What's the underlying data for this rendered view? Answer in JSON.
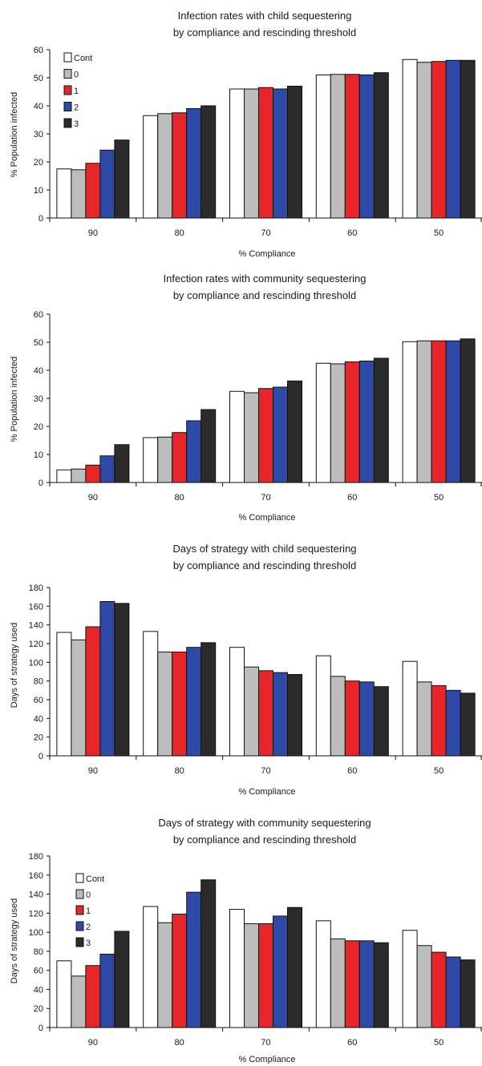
{
  "colors": {
    "Cont": "#ffffff",
    "0": "#bdbdbd",
    "1": "#e8262a",
    "2": "#2f4aa6",
    "3": "#2b2b2b",
    "stroke": "#111111"
  },
  "chart_data": [
    {
      "type": "bar",
      "title": "Infection rates with child sequestering",
      "subtitle": "by compliance and rescinding threshold",
      "xlabel": "% Compliance",
      "ylabel": "% Population infected",
      "ylim": [
        0,
        60
      ],
      "yticks": [
        0,
        10,
        20,
        30,
        40,
        50,
        60
      ],
      "categories": [
        "90",
        "80",
        "70",
        "60",
        "50"
      ],
      "legend": "top-left",
      "grid": false,
      "series": [
        {
          "name": "Cont",
          "values": [
            17.5,
            36.5,
            46,
            51,
            56.5
          ]
        },
        {
          "name": "0",
          "values": [
            17.2,
            37.2,
            46,
            51.2,
            55.5
          ]
        },
        {
          "name": "1",
          "values": [
            19.5,
            37.5,
            46.5,
            51.2,
            55.8
          ]
        },
        {
          "name": "2",
          "values": [
            24.2,
            39,
            46,
            51,
            56.2
          ]
        },
        {
          "name": "3",
          "values": [
            27.8,
            40,
            47,
            51.8,
            56.2
          ]
        }
      ]
    },
    {
      "type": "bar",
      "title": "Infection rates with community sequestering",
      "subtitle": "by compliance and rescinding threshold",
      "xlabel": "% Compliance",
      "ylabel": "% Population infected",
      "ylim": [
        0,
        60
      ],
      "yticks": [
        0,
        10,
        20,
        30,
        40,
        50,
        60
      ],
      "categories": [
        "90",
        "80",
        "70",
        "60",
        "50"
      ],
      "legend": "",
      "grid": false,
      "series": [
        {
          "name": "Cont",
          "values": [
            4.5,
            16,
            32.5,
            42.5,
            50.2
          ]
        },
        {
          "name": "0",
          "values": [
            4.8,
            16.2,
            32,
            42.3,
            50.5
          ]
        },
        {
          "name": "1",
          "values": [
            6.2,
            17.8,
            33.5,
            43,
            50.5
          ]
        },
        {
          "name": "2",
          "values": [
            9.5,
            22,
            34,
            43.3,
            50.5
          ]
        },
        {
          "name": "3",
          "values": [
            13.5,
            26,
            36.2,
            44.3,
            51.2
          ]
        }
      ]
    },
    {
      "type": "bar",
      "title": "Days of strategy with child sequestering",
      "subtitle": "by compliance and rescinding threshold",
      "xlabel": "% Compliance",
      "ylabel": "Days of strategy used",
      "ylim": [
        0,
        180
      ],
      "yticks": [
        0,
        20,
        40,
        60,
        80,
        100,
        120,
        140,
        160,
        180
      ],
      "categories": [
        "90",
        "80",
        "70",
        "60",
        "50"
      ],
      "legend": "",
      "grid": false,
      "series": [
        {
          "name": "Cont",
          "values": [
            132,
            133,
            116,
            107,
            101
          ]
        },
        {
          "name": "0",
          "values": [
            124,
            111,
            95,
            85,
            79
          ]
        },
        {
          "name": "1",
          "values": [
            138,
            111,
            91,
            80,
            75
          ]
        },
        {
          "name": "2",
          "values": [
            165,
            116,
            89,
            79,
            70
          ]
        },
        {
          "name": "3",
          "values": [
            163,
            121,
            87,
            74,
            67
          ]
        }
      ]
    },
    {
      "type": "bar",
      "title": "Days of strategy with community sequestering",
      "subtitle": "by compliance and rescinding threshold",
      "xlabel": "% Compliance",
      "ylabel": "Days of strategy used",
      "ylim": [
        0,
        180
      ],
      "yticks": [
        0,
        20,
        40,
        60,
        80,
        100,
        120,
        140,
        160,
        180
      ],
      "categories": [
        "90",
        "80",
        "70",
        "60",
        "50"
      ],
      "legend": "top-left",
      "grid": false,
      "series": [
        {
          "name": "Cont",
          "values": [
            70,
            127,
            124,
            112,
            102
          ]
        },
        {
          "name": "0",
          "values": [
            54,
            110,
            109,
            93,
            86
          ]
        },
        {
          "name": "1",
          "values": [
            65,
            119,
            109,
            91,
            79
          ]
        },
        {
          "name": "2",
          "values": [
            77,
            142,
            117,
            91,
            74
          ]
        },
        {
          "name": "3",
          "values": [
            101,
            155,
            126,
            89,
            71
          ]
        }
      ]
    }
  ]
}
